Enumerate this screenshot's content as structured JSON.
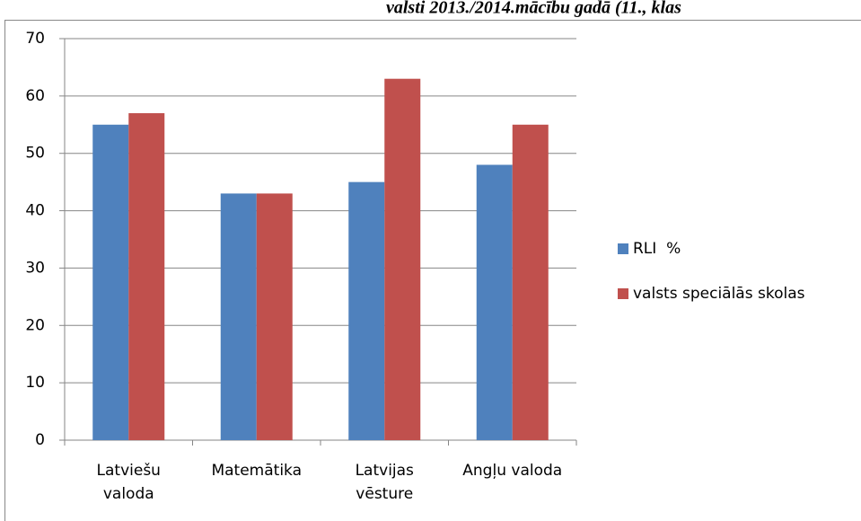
{
  "chart_data": {
    "type": "bar",
    "title": "valsti 2013./2014.mācību gadā (11., klas",
    "categories": [
      [
        "Latviešu",
        "valoda"
      ],
      [
        "Matemātika"
      ],
      [
        "Latvijas",
        "vēsture"
      ],
      [
        "Angļu valoda"
      ]
    ],
    "series": [
      {
        "name": "RLI  %",
        "color": "#4f81bd",
        "values": [
          55,
          43,
          45,
          48
        ]
      },
      {
        "name": "valsts speciālās skolas",
        "color": "#c0504d",
        "values": [
          57,
          43,
          63,
          55
        ]
      }
    ],
    "ylim": [
      0,
      70
    ],
    "yticks": [
      0,
      10,
      20,
      30,
      40,
      50,
      60,
      70
    ],
    "grid": true,
    "legend": "right"
  }
}
